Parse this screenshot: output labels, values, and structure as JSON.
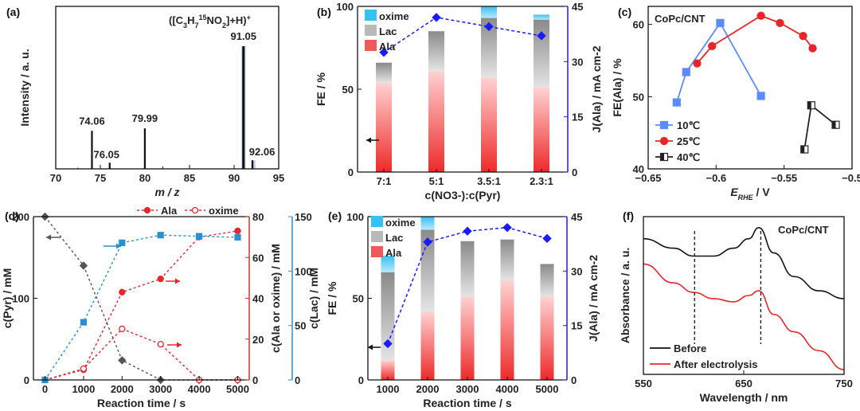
{
  "colors": {
    "blue": "#1a1aff",
    "red": "#e8262a",
    "teal": "#2a8fd1",
    "gray": "#999999",
    "black": "#111111",
    "oxime": "#37c1f0",
    "lac": "#b9b9b9",
    "ala": "#f05a5a"
  },
  "chart_data": [
    {
      "panel": "(a)",
      "type": "bar",
      "title": "([C3H715NO2]+H)+",
      "xlabel": "m / z",
      "ylabel": "Intensity / a. u.",
      "xlim": [
        70,
        95
      ],
      "xticks": [
        "70",
        "75",
        "80",
        "85",
        "90",
        "95"
      ],
      "peaks": [
        {
          "x": 74.06,
          "value": 0.31,
          "label": "74.06"
        },
        {
          "x": 76.05,
          "value": 0.05,
          "label": "76.05"
        },
        {
          "x": 79.99,
          "value": 0.33,
          "label": "79.99"
        },
        {
          "x": 91.05,
          "value": 1.0,
          "label": "91.05"
        },
        {
          "x": 92.06,
          "value": 0.07,
          "label": "92.06"
        }
      ],
      "minor_peaks": [
        {
          "x": 82.0,
          "value": 0.02
        },
        {
          "x": 72.5,
          "value": 0.01
        }
      ]
    },
    {
      "panel": "(b)",
      "type": "bar",
      "xlabel": "c(NO3-):c(Pyr)",
      "ylabel": "FE / %",
      "y2label": "J(Ala) / mA cm-2",
      "categories": [
        "7:1",
        "5:1",
        "3.5:1",
        "2.3:1"
      ],
      "ylim": [
        0,
        100
      ],
      "yticks": [
        "0",
        "50",
        "100"
      ],
      "y2lim": [
        0,
        45
      ],
      "y2ticks": [
        "0",
        "15",
        "30",
        "45"
      ],
      "legend": [
        "oxime",
        "Lac",
        "Ala"
      ],
      "series": [
        {
          "name": "Ala",
          "values": [
            54,
            61,
            57,
            51
          ]
        },
        {
          "name": "Lac",
          "values": [
            12,
            24,
            36,
            41
          ]
        },
        {
          "name": "oxime",
          "values": [
            0,
            0,
            11,
            3
          ]
        },
        {
          "name": "J(Ala)",
          "axis": "right",
          "values": [
            32.5,
            42.0,
            39.5,
            37.0
          ]
        }
      ]
    },
    {
      "panel": "(c)",
      "type": "line",
      "title": "CoPc/CNT",
      "xlabel": "E RHE / V",
      "ylabel": "FE(Ala) / %",
      "xlim": [
        -0.65,
        -0.5
      ],
      "xticks": [
        "-0.65",
        "-0.6",
        "-0.55",
        "-0.5"
      ],
      "ylim": [
        40,
        62
      ],
      "yticks": [
        "40",
        "50",
        "60"
      ],
      "series": [
        {
          "name": "10℃",
          "x": [
            -0.629,
            -0.622,
            -0.597,
            -0.567
          ],
          "values": [
            49.2,
            53.4,
            60.2,
            50.1
          ]
        },
        {
          "name": "25℃",
          "x": [
            -0.614,
            -0.603,
            -0.567,
            -0.553,
            -0.536,
            -0.529
          ],
          "values": [
            54.6,
            57.0,
            61.2,
            60.2,
            58.4,
            56.7
          ]
        },
        {
          "name": "40℃",
          "x": [
            -0.535,
            -0.53,
            -0.512
          ],
          "values": [
            42.7,
            48.8,
            46.1
          ]
        }
      ]
    },
    {
      "panel": "(d)",
      "type": "line",
      "xlabel": "Reaction time / s",
      "ylabel": "c(Pyr) / mM",
      "y2label": "c(Ala or oxime) / mM",
      "y3label": "c(Lac) / mM",
      "x": [
        0,
        1000,
        2000,
        3000,
        4000,
        5000
      ],
      "xticks": [
        "0",
        "1000",
        "2000",
        "3000",
        "4000",
        "5000"
      ],
      "ylim": [
        0,
        200
      ],
      "yticks": [
        "0",
        "100",
        "200"
      ],
      "y2lim": [
        0,
        80
      ],
      "y2ticks": [
        "0",
        "20",
        "40",
        "60",
        "80"
      ],
      "y3lim": [
        0,
        150
      ],
      "y3ticks": [
        "0",
        "50",
        "100",
        "150"
      ],
      "legend": [
        "Ala",
        "oxime"
      ],
      "series": [
        {
          "name": "Pyr",
          "axis": "left",
          "values": [
            200,
            140,
            24,
            0,
            0,
            0
          ]
        },
        {
          "name": "Ala",
          "axis": "right",
          "values": [
            0,
            5,
            43,
            49.5,
            70,
            73
          ]
        },
        {
          "name": "oxime",
          "axis": "right",
          "values": [
            0,
            5.5,
            25,
            17.5,
            0,
            0
          ]
        },
        {
          "name": "Lac",
          "axis": "far-right",
          "values": [
            0,
            53,
            126,
            133,
            132,
            131
          ]
        }
      ]
    },
    {
      "panel": "(e)",
      "type": "bar",
      "xlabel": "Reaction time / s",
      "ylabel": "FE / %",
      "y2label": "J(Ala) / mA cm-2",
      "categories": [
        "1000",
        "2000",
        "3000",
        "4000",
        "5000"
      ],
      "ylim": [
        0,
        100
      ],
      "yticks": [
        "0",
        "50",
        "100"
      ],
      "y2lim": [
        0,
        45
      ],
      "y2ticks": [
        "0",
        "15",
        "30",
        "45"
      ],
      "legend": [
        "oxime",
        "Lac",
        "Ala"
      ],
      "series": [
        {
          "name": "Ala",
          "values": [
            12,
            42,
            51,
            61,
            51
          ]
        },
        {
          "name": "Lac",
          "values": [
            54,
            50,
            34,
            25,
            20
          ]
        },
        {
          "name": "oxime",
          "values": [
            10,
            8,
            0,
            0,
            0
          ]
        },
        {
          "name": "J(Ala)",
          "axis": "right",
          "values": [
            10,
            38,
            41,
            42,
            39
          ]
        }
      ]
    },
    {
      "panel": "(f)",
      "type": "line",
      "title": "CoPc/CNT",
      "xlabel": "Wavelength / nm",
      "ylabel": "Absorbance / a. u.",
      "xlim": [
        550,
        750
      ],
      "xticks": [
        "550",
        "650",
        "750"
      ],
      "series": [
        {
          "name": "Before",
          "x": [
            550,
            580,
            600,
            620,
            640,
            655,
            665,
            680,
            700,
            725,
            750
          ],
          "values": [
            0.86,
            0.8,
            0.75,
            0.75,
            0.8,
            0.86,
            0.93,
            0.77,
            0.62,
            0.53,
            0.48
          ]
        },
        {
          "name": "After electrolysis",
          "x": [
            550,
            580,
            600,
            620,
            640,
            655,
            665,
            680,
            700,
            725,
            750
          ],
          "values": [
            0.7,
            0.58,
            0.52,
            0.48,
            0.46,
            0.5,
            0.53,
            0.38,
            0.27,
            0.15,
            0.03
          ]
        }
      ],
      "vlines": [
        601,
        667
      ]
    }
  ]
}
